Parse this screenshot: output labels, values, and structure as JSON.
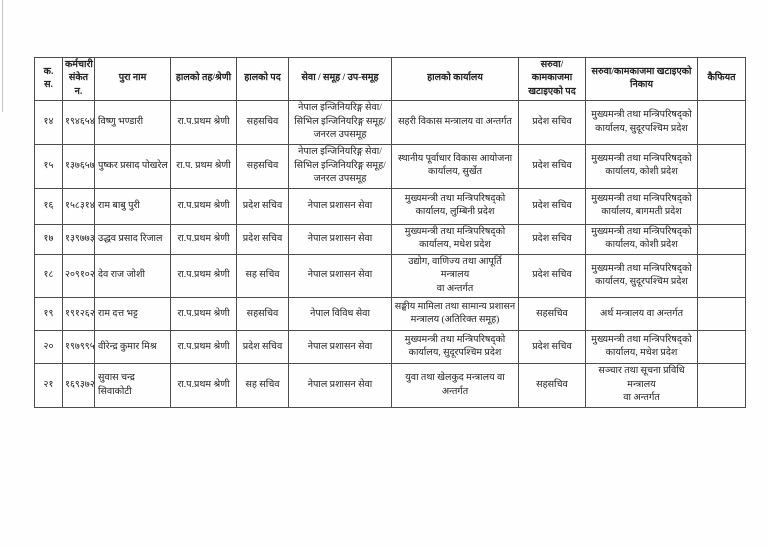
{
  "colors": {
    "background": "#ffffff",
    "border": "#4d4d4d",
    "text": "#212121"
  },
  "table": {
    "headers": [
      "क.\nस.",
      "कर्मचारी\nसंकेत न.",
      "पुरा नाम",
      "हालको तह/श्रेणी",
      "हालको पद",
      "सेवा / समूह / उप-समूह",
      "हालको कार्यालय",
      "सरुवा/कामकाजमा\nखटाइएको पद",
      "सरुवा/कामकाजमा खटाइएको\nनिकाय",
      "कैफियत"
    ],
    "rows": [
      {
        "sn": "१४",
        "code": "१९४६५४",
        "name": "विष्णु भण्डारी",
        "level": "रा.प.प्रथम श्रेणी",
        "position": "सहसचिव",
        "service": "नेपाल इन्जिनियरिङ्ग सेवा/\nसिभिल इन्जिनियरिङ्ग समूह/\nजनरल उपसमूह",
        "office": "सहरी विकास मन्त्रालय वा अन्तर्गत",
        "new_position": "प्रदेश सचिव",
        "new_office": "मुख्यमन्त्री तथा मन्त्रिपरिषद्को\nकार्यालय, सुदूरपश्चिम प्रदेश",
        "remarks": ""
      },
      {
        "sn": "१५",
        "code": "१३७६५७",
        "name": "पुष्कर प्रसाद पोखरेल",
        "level": "रा.प. प्रथम श्रेणी",
        "position": "सहसचिव",
        "service": "नेपाल इन्जिनियरिङ्ग सेवा/\nसिभिल इन्जिनियरिङ्ग समूह/\nजनरल उपसमूह",
        "office": "स्थानीय पूर्वाधार विकास आयोजना\nकार्यालय, सुर्खेत",
        "new_position": "प्रदेश सचिव",
        "new_office": "मुख्यमन्त्री तथा मन्त्रिपरिषद्को\nकार्यालय, कोशी प्रदेश",
        "remarks": ""
      },
      {
        "sn": "१६",
        "code": "१५८३१४",
        "name": "राम बाबु पुरी",
        "level": "रा.प.प्रथम श्रेणी",
        "position": "प्रदेश सचिव",
        "service": "नेपाल प्रशासन सेवा",
        "office": "मुख्यमन्त्री तथा मन्त्रिपरिषद्को\nकार्यालय, लुम्बिनी प्रदेश",
        "new_position": "प्रदेश सचिव",
        "new_office": "मुख्यमन्त्री तथा मन्त्रिपरिषद्को\nकार्यालय, बागमती प्रदेश",
        "remarks": ""
      },
      {
        "sn": "१७",
        "code": "१३९७७३",
        "name": "उद्धव प्रसाद रिजाल",
        "level": "रा.प.प्रथम श्रेणी",
        "position": "प्रदेश सचिव",
        "service": "नेपाल प्रशासन सेवा",
        "office": "मुख्यमन्त्री तथा मन्त्रिपरिषद्को\nकार्यालय, मधेश प्रदेश",
        "new_position": "प्रदेश सचिव",
        "new_office": "मुख्यमन्त्री तथा मन्त्रिपरिषद्को\nकार्यालय, कोशी प्रदेश",
        "remarks": ""
      },
      {
        "sn": "१८",
        "code": "२०९१०२",
        "name": "देव राज जोशी",
        "level": "रा.प.प्रथम श्रेणी",
        "position": "सह सचिव",
        "service": "नेपाल प्रशासन सेवा",
        "office": "उद्योग, वाणिज्य तथा आपूर्ति मन्त्रालय\nवा अन्तर्गत",
        "new_position": "प्रदेश सचिव",
        "new_office": "मुख्यमन्त्री तथा मन्त्रिपरिषद्को\nकार्यालय, सुदूरपश्चिम प्रदेश",
        "remarks": ""
      },
      {
        "sn": "१९",
        "code": "१९१२६२",
        "name": "राम दत्त भट्ट",
        "level": "रा.प.प्रथम श्रेणी",
        "position": "सहसचिव",
        "service": "नेपाल विविध सेवा",
        "office": "सङ्घीय मामिला तथा सामान्य प्रशासन\nमन्त्रालय (अतिरिक्त समूह)",
        "new_position": "सहसचिव",
        "new_office": "अर्थ मन्त्रालय वा अन्तर्गत",
        "remarks": ""
      },
      {
        "sn": "२०",
        "code": "१९७९९५",
        "name": "वीरेन्द्र कुमार मिश्र",
        "level": "रा.प.प्रथम श्रेणी",
        "position": "प्रदेश सचिव",
        "service": "नेपाल प्रशासन सेवा",
        "office": "मुख्यमन्त्री तथा मन्त्रिपरिषद्को\nकार्यालय, सुदूरपश्चिम प्रदेश",
        "new_position": "प्रदेश सचिव",
        "new_office": "मुख्यमन्त्री तथा मन्त्रिपरिषद्को\nकार्यालय, मधेश प्रदेश",
        "remarks": ""
      },
      {
        "sn": "२१",
        "code": "१६९३७२",
        "name": "सुवास चन्द्र सिवाकोटी",
        "level": "रा.प.प्रथम श्रेणी",
        "position": "सह सचिव",
        "service": "नेपाल प्रशासन सेवा",
        "office": "युवा तथा खेलकुद मन्त्रालय वा अन्तर्गत",
        "new_position": "सहसचिव",
        "new_office": "सञ्चार तथा सूचना प्रविधि मन्त्रालय\nवा अन्तर्गत",
        "remarks": ""
      }
    ]
  }
}
